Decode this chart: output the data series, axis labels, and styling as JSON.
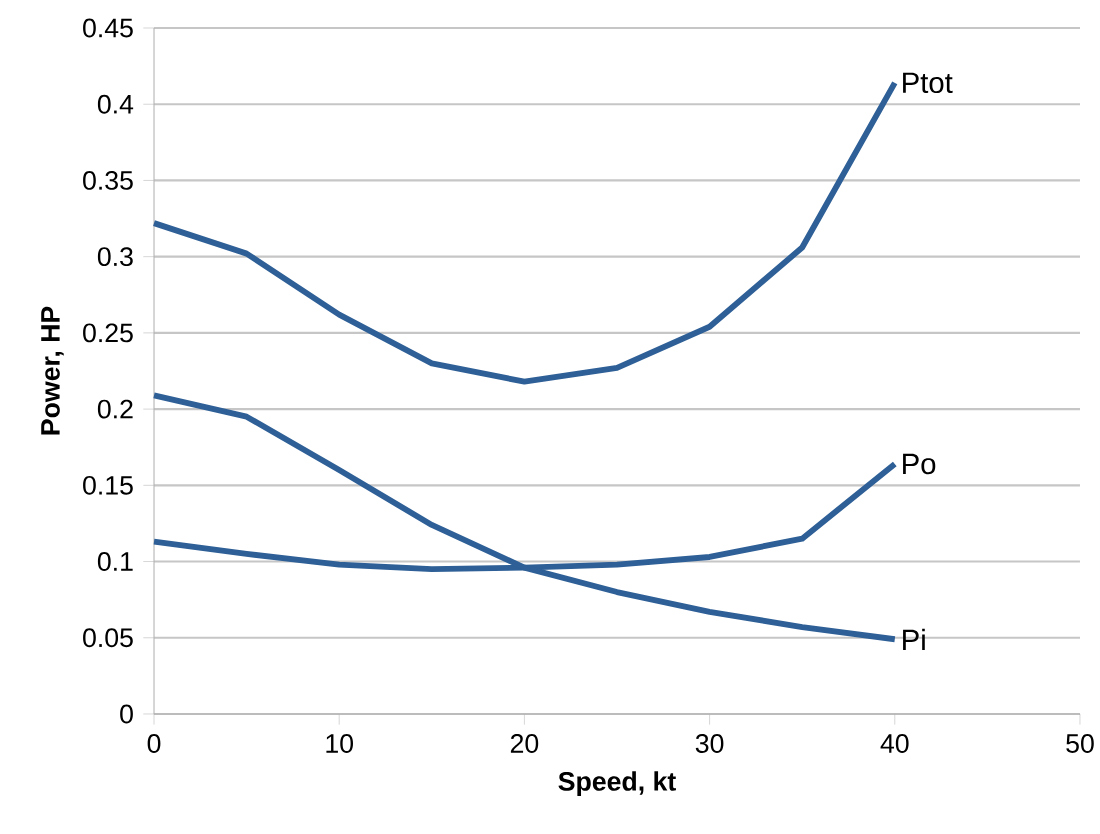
{
  "chart_data": {
    "type": "line",
    "xlabel": "Speed, kt",
    "ylabel": "Power, HP",
    "x": [
      0,
      5,
      10,
      15,
      20,
      25,
      30,
      35,
      40
    ],
    "series": [
      {
        "name": "Ptot",
        "color": "#2e5f96",
        "values": [
          0.322,
          0.302,
          0.262,
          0.23,
          0.218,
          0.227,
          0.254,
          0.306,
          0.414
        ]
      },
      {
        "name": "Po",
        "color": "#2e5f96",
        "values": [
          0.113,
          0.105,
          0.098,
          0.095,
          0.096,
          0.098,
          0.103,
          0.115,
          0.164
        ]
      },
      {
        "name": "Pi",
        "color": "#2e5f96",
        "values": [
          0.209,
          0.195,
          0.16,
          0.124,
          0.096,
          0.08,
          0.067,
          0.057,
          0.049
        ]
      }
    ],
    "xlim": [
      0,
      50
    ],
    "xticks": [
      0,
      10,
      20,
      30,
      40,
      50
    ],
    "ylim": [
      0,
      0.45
    ],
    "yticks": [
      0,
      0.05,
      0.1,
      0.15,
      0.2,
      0.25,
      0.3,
      0.35,
      0.4,
      0.45
    ],
    "grid": "y",
    "legend": false,
    "marker": "none",
    "line_style": "solid"
  }
}
